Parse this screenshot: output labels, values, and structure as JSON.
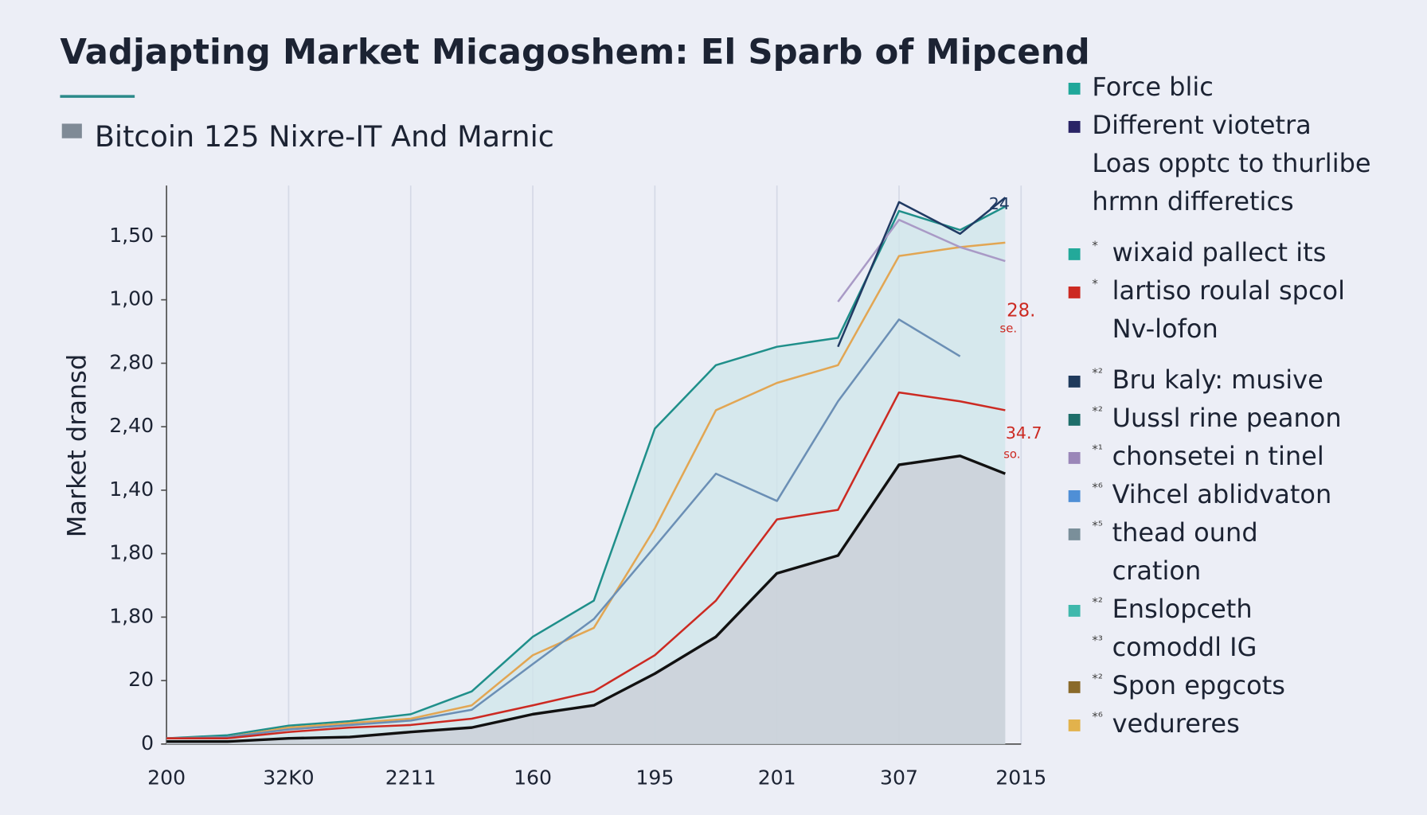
{
  "chart_data": {
    "type": "line",
    "title": "Vadjapting Market Micagoshem: El Sparb of Mipcend",
    "subtitle": "Bitcoin 125 Nixre-IT And Marnic",
    "y_label": "Market dransd",
    "x": [
      0,
      0.5,
      1,
      1.5,
      2,
      2.5,
      3,
      3.5,
      4,
      4.5,
      5,
      5.5,
      6,
      6.5,
      6.87
    ],
    "xlim": [
      0,
      7
    ],
    "xticks": [
      {
        "value": 0,
        "label": "200"
      },
      {
        "value": 1,
        "label": "32K0"
      },
      {
        "value": 2,
        "label": "2211"
      },
      {
        "value": 3,
        "label": "160"
      },
      {
        "value": 4,
        "label": "195"
      },
      {
        "value": 5,
        "label": "201"
      },
      {
        "value": 6,
        "label": "307"
      },
      {
        "value": 7,
        "label": "2015"
      }
    ],
    "ylim": [
      0,
      8.8
    ],
    "yticks": [
      {
        "value": 0,
        "label": "0"
      },
      {
        "value": 1,
        "label": "20"
      },
      {
        "value": 2,
        "label": "1,80"
      },
      {
        "value": 3,
        "label": "1,80"
      },
      {
        "value": 4,
        "label": "1,40"
      },
      {
        "value": 5,
        "label": "2,40"
      },
      {
        "value": 6,
        "label": "2,80"
      },
      {
        "value": 7,
        "label": "1,00"
      },
      {
        "value": 8,
        "label": "1,50"
      }
    ],
    "grid": "x",
    "series": [
      {
        "color": "#1f8f8a",
        "area": "#cfe6ea",
        "values": [
          0.09,
          0.14,
          0.29,
          0.36,
          0.47,
          0.83,
          1.69,
          2.26,
          4.97,
          5.97,
          6.26,
          6.4,
          8.4,
          8.1,
          8.47
        ]
      },
      {
        "color": "#e2a653",
        "values": [
          0.09,
          0.11,
          0.26,
          0.33,
          0.4,
          0.61,
          1.4,
          1.83,
          3.4,
          5.26,
          5.69,
          5.97,
          7.69,
          7.83,
          7.9
        ]
      },
      {
        "color": "#6b8fb5",
        "values": [
          0.09,
          0.11,
          0.23,
          0.3,
          0.37,
          0.54,
          1.26,
          1.97,
          3.11,
          4.26,
          3.83,
          5.4,
          6.69,
          6.11,
          null
        ]
      },
      {
        "color": "#a99ac6",
        "values": [
          null,
          null,
          null,
          null,
          null,
          null,
          null,
          null,
          null,
          null,
          null,
          6.97,
          8.26,
          7.83,
          7.61
        ]
      },
      {
        "color": "#203a63",
        "values": [
          null,
          null,
          null,
          null,
          null,
          null,
          null,
          null,
          null,
          null,
          null,
          6.26,
          8.54,
          8.04,
          8.61
        ]
      },
      {
        "color": "#cc2a22",
        "values": [
          0.09,
          0.09,
          0.19,
          0.26,
          0.3,
          0.4,
          0.61,
          0.83,
          1.4,
          2.26,
          3.54,
          3.69,
          5.54,
          5.4,
          5.26
        ]
      },
      {
        "color": "#111111",
        "area": "#c9ced6",
        "values": [
          0.04,
          0.04,
          0.09,
          0.11,
          0.19,
          0.26,
          0.47,
          0.61,
          1.11,
          1.69,
          2.69,
          2.97,
          4.4,
          4.54,
          4.26
        ]
      }
    ],
    "annotations": [
      {
        "text": "24",
        "color": "#203a63"
      },
      {
        "text": "28.",
        "color": "#cc2a22"
      },
      {
        "text": "se.",
        "color": "#cc2a22"
      },
      {
        "text": "34.7",
        "color": "#cc2a22"
      },
      {
        "text": "so.",
        "color": "#cc2a22"
      }
    ],
    "legend": [
      [
        {
          "color": "#1fa79a",
          "lines": [
            "Force blic"
          ]
        },
        {
          "color": "#2a2466",
          "lines": [
            "Different viotetra",
            "Loas opptc to thurlibe",
            "hrmn differetics"
          ]
        }
      ],
      [
        {
          "color": "#23a99a",
          "note": "*",
          "lines": [
            "wixaid pallect its"
          ]
        },
        {
          "color": "#cc2a22",
          "note": "*",
          "lines": [
            "lartiso roulal spcol",
            "Nv-lofon"
          ]
        }
      ],
      [
        {
          "color": "#1f3a5c",
          "note": "*²",
          "lines": [
            "Bru kaly: musive"
          ]
        },
        {
          "color": "#1e6e6a",
          "note": "*²",
          "lines": [
            "Uussl rine peanon"
          ]
        },
        {
          "color": "#9a86b8",
          "note": "*¹",
          "lines": [
            "chonsetei n tinel"
          ]
        },
        {
          "color": "#4f8fd6",
          "note": "*⁶",
          "lines": [
            "Vihcel ablidvaton"
          ]
        },
        {
          "color": "#7a8f9a",
          "note": "*⁵",
          "lines": [
            "thead ound",
            "cration"
          ]
        },
        {
          "color": "#3fb8ac",
          "note": "*²",
          "lines": [
            "Enslopceth"
          ]
        },
        {
          "note": "*³",
          "lines": [
            "comoddl IG"
          ]
        },
        {
          "color": "#8a6a2a",
          "note": "*²",
          "lines": [
            "Spon epgcots"
          ]
        },
        {
          "color": "#e2b24c",
          "note": "*⁶",
          "lines": [
            "vedureres"
          ]
        }
      ]
    ]
  }
}
